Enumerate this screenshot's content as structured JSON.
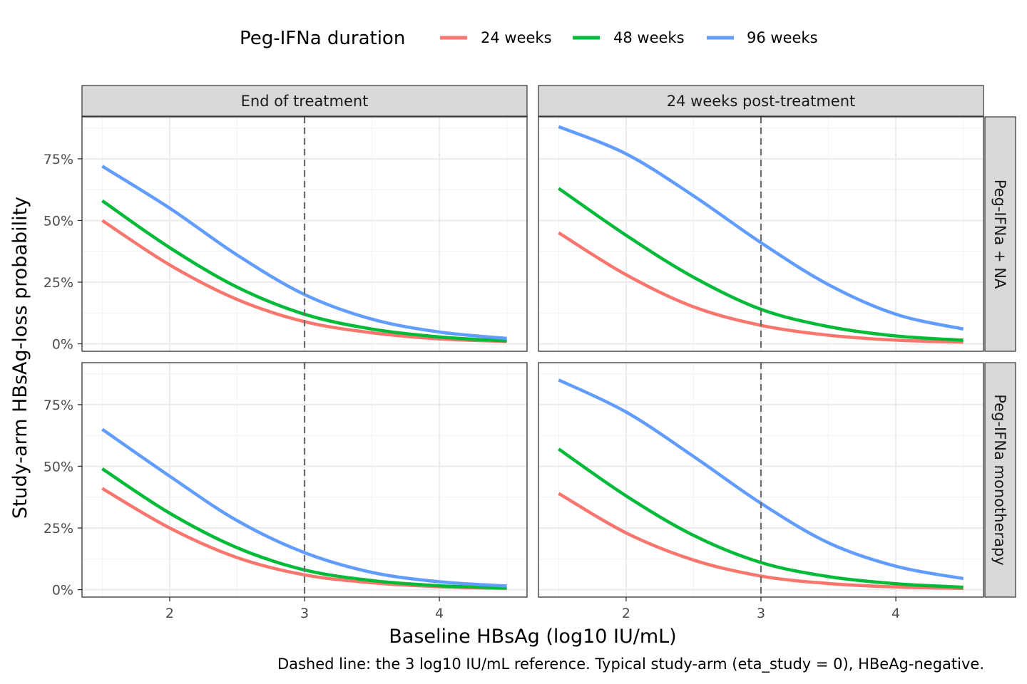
{
  "legend": {
    "title": "Peg-IFNa duration",
    "items": [
      {
        "label": "24 weeks",
        "color": "#F8766D"
      },
      {
        "label": "48 weeks",
        "color": "#00BA38"
      },
      {
        "label": "96 weeks",
        "color": "#619CFF"
      }
    ]
  },
  "caption": "Dashed line: the 3 log10 IU/mL reference. Typical study-arm (eta_study = 0), HBeAg-negative.",
  "chart_data": {
    "type": "line",
    "xlabel": "Baseline HBsAg (log10 IU/mL)",
    "ylabel": "Study-arm HBsAg-loss probability",
    "xlim": [
      1.35,
      4.65
    ],
    "ylim": [
      -0.03,
      0.92
    ],
    "x_ticks": [
      2,
      3,
      4
    ],
    "x_tick_labels": [
      "2",
      "3",
      "4"
    ],
    "y_ticks": [
      0,
      0.25,
      0.5,
      0.75
    ],
    "y_tick_labels": [
      "0%",
      "25%",
      "50%",
      "75%"
    ],
    "reference_line_x": 3,
    "grid": true,
    "legend_position": "top",
    "facet_cols": [
      "End of treatment",
      "24 weeks post-treatment"
    ],
    "facet_rows": [
      "Peg-IFNa + NA",
      "Peg-IFNa monotherapy"
    ],
    "x": [
      1.5,
      2.0,
      2.5,
      3.0,
      3.5,
      4.0,
      4.5
    ],
    "panels": [
      {
        "col": "End of treatment",
        "row": "Peg-IFNa + NA",
        "series": [
          {
            "name": "24 weeks",
            "values": [
              0.5,
              0.32,
              0.18,
              0.09,
              0.045,
              0.02,
              0.01
            ]
          },
          {
            "name": "48 weeks",
            "values": [
              0.58,
              0.39,
              0.23,
              0.12,
              0.06,
              0.028,
              0.012
            ]
          },
          {
            "name": "96 weeks",
            "values": [
              0.72,
              0.55,
              0.36,
              0.2,
              0.1,
              0.048,
              0.022
            ]
          }
        ]
      },
      {
        "col": "24 weeks post-treatment",
        "row": "Peg-IFNa + NA",
        "series": [
          {
            "name": "24 weeks",
            "values": [
              0.45,
              0.28,
              0.15,
              0.075,
              0.035,
              0.015,
              0.007
            ]
          },
          {
            "name": "48 weeks",
            "values": [
              0.63,
              0.44,
              0.27,
              0.14,
              0.07,
              0.032,
              0.015
            ]
          },
          {
            "name": "96 weeks",
            "values": [
              0.88,
              0.77,
              0.6,
              0.41,
              0.24,
              0.12,
              0.06
            ]
          }
        ]
      },
      {
        "col": "End of treatment",
        "row": "Peg-IFNa monotherapy",
        "series": [
          {
            "name": "24 weeks",
            "values": [
              0.41,
              0.25,
              0.13,
              0.06,
              0.028,
              0.012,
              0.005
            ]
          },
          {
            "name": "48 weeks",
            "values": [
              0.49,
              0.31,
              0.17,
              0.08,
              0.037,
              0.016,
              0.007
            ]
          },
          {
            "name": "96 weeks",
            "values": [
              0.65,
              0.46,
              0.28,
              0.15,
              0.07,
              0.032,
              0.015
            ]
          }
        ]
      },
      {
        "col": "24 weeks post-treatment",
        "row": "Peg-IFNa monotherapy",
        "series": [
          {
            "name": "24 weeks",
            "values": [
              0.39,
              0.23,
              0.12,
              0.055,
              0.025,
              0.011,
              0.005
            ]
          },
          {
            "name": "48 weeks",
            "values": [
              0.57,
              0.38,
              0.22,
              0.11,
              0.053,
              0.024,
              0.01
            ]
          },
          {
            "name": "96 weeks",
            "values": [
              0.85,
              0.72,
              0.54,
              0.35,
              0.19,
              0.095,
              0.045
            ]
          }
        ]
      }
    ]
  }
}
